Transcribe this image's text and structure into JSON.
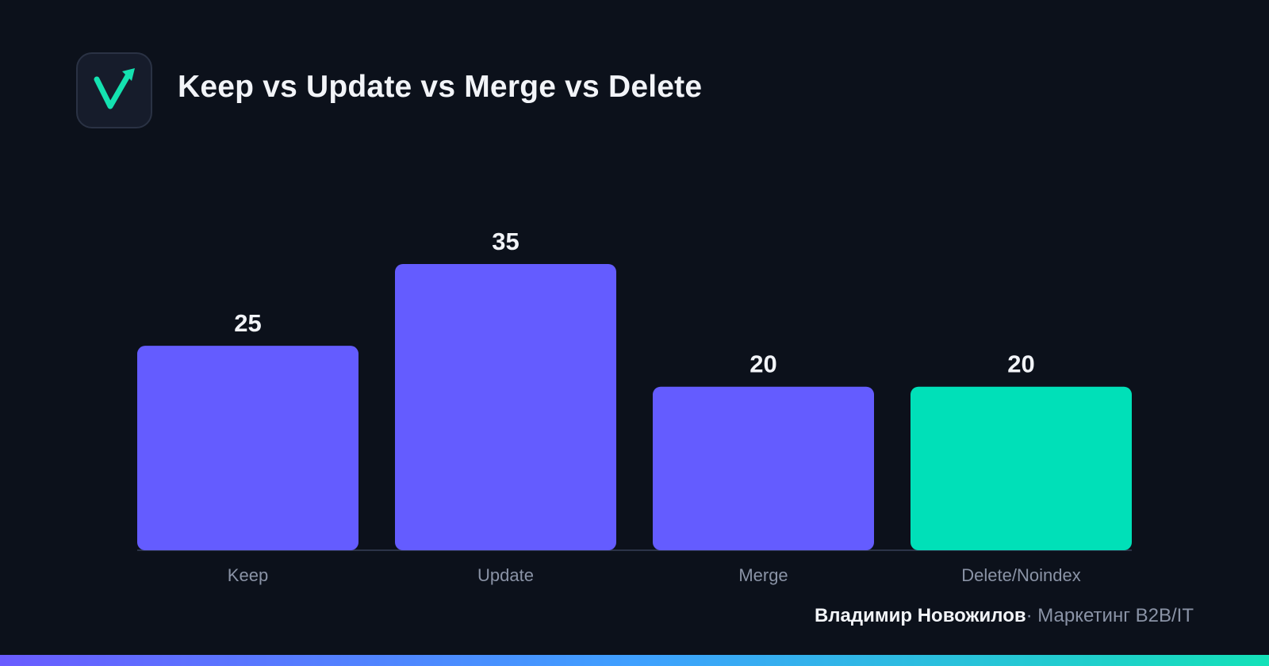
{
  "header": {
    "title": "Keep vs Update vs Merge vs Delete",
    "logo_icon": "checkmark-arrow-icon"
  },
  "colors": {
    "background": "#0c111b",
    "bar_primary": "#645cff",
    "bar_highlight": "#00e0b8",
    "text_primary": "#f2f4f8",
    "text_muted": "#8a93a6",
    "logo_accent": "#14e1b0"
  },
  "chart_data": {
    "type": "bar",
    "title": "Keep vs Update vs Merge vs Delete",
    "categories": [
      "Keep",
      "Update",
      "Merge",
      "Delete/Noindex"
    ],
    "values": [
      25,
      35,
      20,
      20
    ],
    "highlight_index": 3,
    "data_labels": [
      "25",
      "35",
      "20",
      "20"
    ],
    "xlabel": "",
    "ylabel": "",
    "ylim": [
      0,
      35
    ],
    "grid": false,
    "legend": "none"
  },
  "footer": {
    "author": "Владимир Новожилов",
    "separator": "·",
    "tagline": "Маркетинг B2B/IT"
  }
}
